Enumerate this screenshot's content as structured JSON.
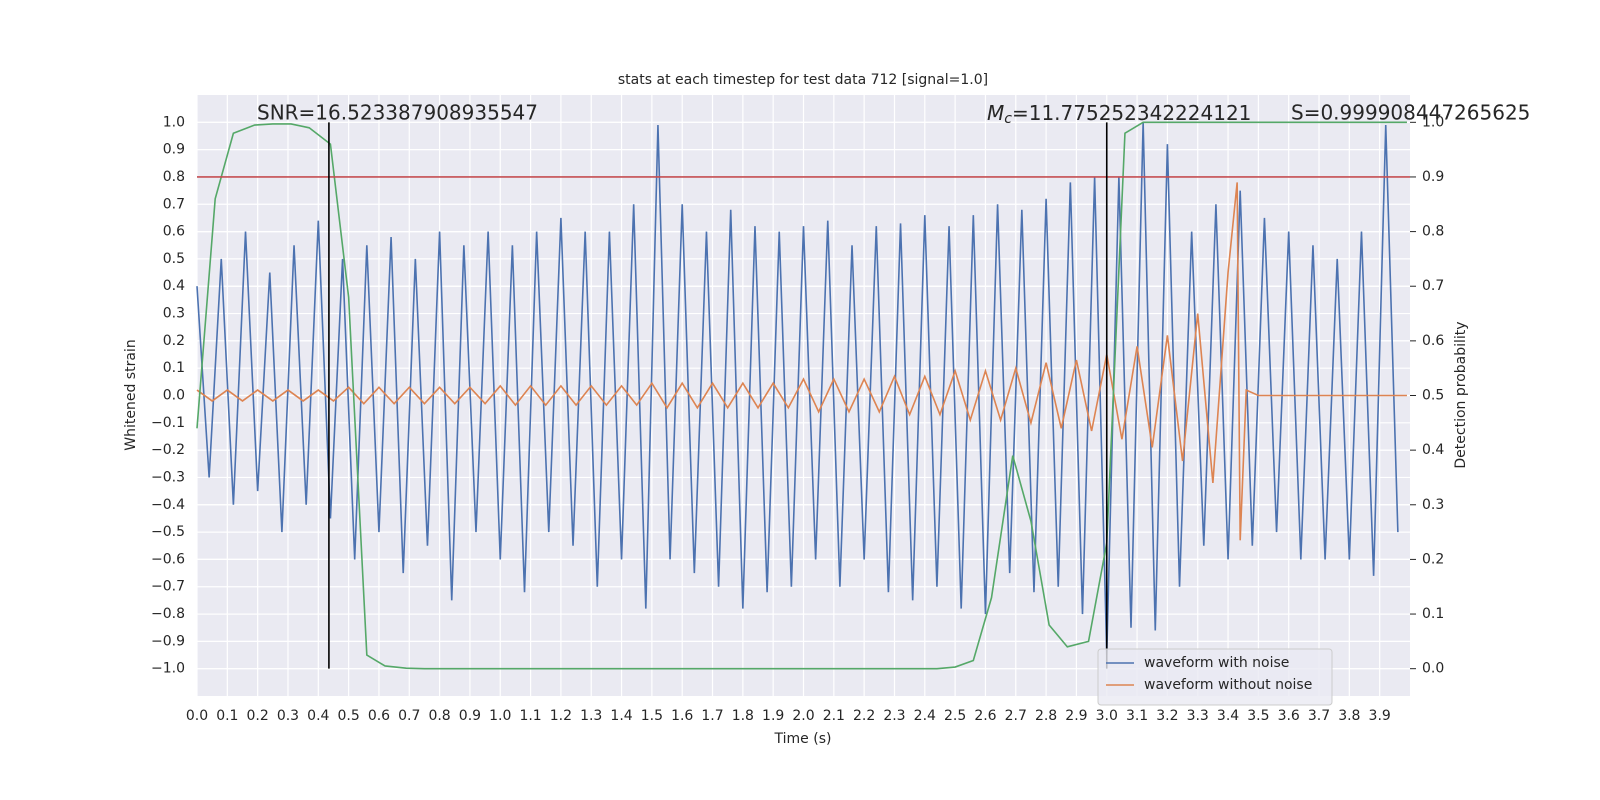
{
  "chart_data": {
    "type": "line",
    "title": "stats at each timestep for test data 712 [signal=1.0]",
    "xlabel": "Time (s)",
    "ylabel": "Whitened strain",
    "y2label": "Detection probability",
    "xlim": [
      0,
      4
    ],
    "ylim": [
      -1.1,
      1.1
    ],
    "y2lim": [
      -0.05,
      1.05
    ],
    "grid": true,
    "legend": "lower right",
    "xticks": [
      {
        "value": 0,
        "label": "0.0"
      },
      0.1,
      0.2,
      0.3,
      0.4,
      0.5,
      0.6,
      0.7,
      0.8,
      0.9,
      {
        "value": 1,
        "label": "1.0"
      },
      1.1,
      1.2,
      1.3,
      1.4,
      1.5,
      1.6,
      1.7,
      1.8,
      1.9,
      {
        "value": 2,
        "label": "2.0"
      },
      2.1,
      2.2,
      2.3,
      2.4,
      2.5,
      2.6,
      2.7,
      2.8,
      2.9,
      {
        "value": 3,
        "label": "3.0"
      },
      3.1,
      3.2,
      3.3,
      3.4,
      3.5,
      3.6,
      3.7,
      3.8,
      3.9
    ],
    "yticks": [
      {
        "value": -1,
        "label": "−1.0"
      },
      {
        "value": -0.9,
        "label": "−0.9"
      },
      {
        "value": -0.8,
        "label": "−0.8"
      },
      {
        "value": -0.7,
        "label": "−0.7"
      },
      {
        "value": -0.6,
        "label": "−0.6"
      },
      {
        "value": -0.5,
        "label": "−0.5"
      },
      {
        "value": -0.4,
        "label": "−0.4"
      },
      {
        "value": -0.3,
        "label": "−0.3"
      },
      {
        "value": -0.2,
        "label": "−0.2"
      },
      {
        "value": -0.1,
        "label": "−0.1"
      },
      {
        "value": 0,
        "label": "0.0"
      },
      0.1,
      0.2,
      0.3,
      0.4,
      0.5,
      0.6,
      0.7,
      0.8,
      0.9,
      {
        "value": 1,
        "label": "1.0"
      }
    ],
    "y2ticks": [
      {
        "value": 0,
        "label": "0.0"
      },
      0.1,
      0.2,
      0.3,
      0.4,
      0.5,
      0.6,
      0.7,
      0.8,
      0.9,
      {
        "value": 1,
        "label": "1.0"
      }
    ],
    "threshold": {
      "value": 0.8,
      "color": "#c44e52"
    },
    "vlines": {
      "x": [
        0.435,
        3.0
      ],
      "range": [
        -1,
        1
      ],
      "color": "#000000"
    },
    "annotations": {
      "snr": "SNR=16.523387908935547",
      "mc": {
        "symbol": "M",
        "subscript": "c",
        "text": "=11.775252342224121"
      },
      "s": "S=0.999908447265625"
    },
    "series": [
      {
        "name": "waveform with noise",
        "color": "#4c72b0",
        "axis": "y",
        "x": [
          0,
          0.04,
          0.08,
          0.12,
          0.16,
          0.2,
          0.24,
          0.28,
          0.32,
          0.36,
          0.4,
          0.44,
          0.48,
          0.52,
          0.56,
          0.6,
          0.64,
          0.68,
          0.72,
          0.76,
          0.8,
          0.84,
          0.88,
          0.92,
          0.96,
          1,
          1.04,
          1.08,
          1.12,
          1.16,
          1.2,
          1.24,
          1.28,
          1.32,
          1.36,
          1.4,
          1.44,
          1.48,
          1.52,
          1.56,
          1.6,
          1.64,
          1.68,
          1.72,
          1.76,
          1.8,
          1.84,
          1.88,
          1.92,
          1.96,
          2,
          2.04,
          2.08,
          2.12,
          2.16,
          2.2,
          2.24,
          2.28,
          2.32,
          2.36,
          2.4,
          2.44,
          2.48,
          2.52,
          2.56,
          2.6,
          2.64,
          2.68,
          2.72,
          2.76,
          2.8,
          2.84,
          2.88,
          2.92,
          2.96,
          3,
          3.04,
          3.08,
          3.12,
          3.16,
          3.2,
          3.24,
          3.28,
          3.32,
          3.36,
          3.4,
          3.44,
          3.48,
          3.52,
          3.56,
          3.6,
          3.64,
          3.68,
          3.72,
          3.76,
          3.8,
          3.84,
          3.88,
          3.92,
          3.96
        ],
        "values": [
          0.4,
          -0.3,
          0.5,
          -0.4,
          0.6,
          -0.35,
          0.45,
          -0.5,
          0.55,
          -0.4,
          0.64,
          -0.45,
          0.5,
          -0.6,
          0.55,
          -0.5,
          0.58,
          -0.65,
          0.5,
          -0.55,
          0.6,
          -0.75,
          0.55,
          -0.5,
          0.6,
          -0.6,
          0.55,
          -0.72,
          0.6,
          -0.5,
          0.65,
          -0.55,
          0.6,
          -0.7,
          0.6,
          -0.6,
          0.7,
          -0.78,
          0.99,
          -0.6,
          0.7,
          -0.65,
          0.6,
          -0.7,
          0.68,
          -0.78,
          0.62,
          -0.72,
          0.6,
          -0.7,
          0.62,
          -0.6,
          0.64,
          -0.7,
          0.55,
          -0.6,
          0.62,
          -0.72,
          0.63,
          -0.75,
          0.66,
          -0.7,
          0.62,
          -0.78,
          0.66,
          -0.8,
          0.7,
          -0.65,
          0.68,
          -0.72,
          0.72,
          -0.7,
          0.78,
          -0.8,
          0.8,
          -0.95,
          0.8,
          -0.85,
          1.0,
          -0.86,
          0.92,
          -0.7,
          0.6,
          -0.55,
          0.7,
          -0.6,
          0.75,
          -0.55,
          0.65,
          -0.5,
          0.6,
          -0.6,
          0.55,
          -0.6,
          0.5,
          -0.6,
          0.6,
          -0.66,
          0.99,
          -0.5
        ]
      },
      {
        "name": "waveform without noise",
        "color": "#dd8452",
        "axis": "y",
        "x": [
          0,
          0.05,
          0.1,
          0.15,
          0.2,
          0.25,
          0.3,
          0.35,
          0.4,
          0.45,
          0.5,
          0.55,
          0.6,
          0.65,
          0.7,
          0.75,
          0.8,
          0.85,
          0.9,
          0.95,
          1,
          1.05,
          1.1,
          1.15,
          1.2,
          1.25,
          1.3,
          1.35,
          1.4,
          1.45,
          1.5,
          1.55,
          1.6,
          1.65,
          1.7,
          1.75,
          1.8,
          1.85,
          1.9,
          1.95,
          2,
          2.05,
          2.1,
          2.15,
          2.2,
          2.25,
          2.3,
          2.35,
          2.4,
          2.45,
          2.5,
          2.55,
          2.6,
          2.65,
          2.7,
          2.75,
          2.8,
          2.85,
          2.9,
          2.95,
          3,
          3.05,
          3.1,
          3.15,
          3.2,
          3.25,
          3.3,
          3.35,
          3.4,
          3.43,
          3.44,
          3.46,
          3.5,
          3.99
        ],
        "values": [
          0.02,
          -0.02,
          0.02,
          -0.02,
          0.02,
          -0.02,
          0.02,
          -0.02,
          0.02,
          -0.02,
          0.03,
          -0.03,
          0.03,
          -0.03,
          0.03,
          -0.03,
          0.03,
          -0.03,
          0.03,
          -0.03,
          0.035,
          -0.035,
          0.035,
          -0.035,
          0.035,
          -0.035,
          0.035,
          -0.035,
          0.035,
          -0.035,
          0.045,
          -0.045,
          0.045,
          -0.045,
          0.045,
          -0.045,
          0.045,
          -0.045,
          0.045,
          -0.045,
          0.06,
          -0.06,
          0.06,
          -0.06,
          0.06,
          -0.06,
          0.07,
          -0.07,
          0.07,
          -0.07,
          0.09,
          -0.09,
          0.09,
          -0.09,
          0.1,
          -0.1,
          0.12,
          -0.12,
          0.13,
          -0.13,
          0.15,
          -0.16,
          0.18,
          -0.19,
          0.22,
          -0.24,
          0.3,
          -0.32,
          0.45,
          0.78,
          -0.53,
          0.02,
          0,
          0
        ]
      },
      {
        "color": "#55a868",
        "axis": "y2",
        "x": [
          0,
          0.06,
          0.12,
          0.19,
          0.25,
          0.31,
          0.37,
          0.44,
          0.5,
          0.56,
          0.62,
          0.69,
          0.75,
          2.44,
          2.5,
          2.56,
          2.62,
          2.69,
          2.75,
          2.81,
          2.87,
          2.94,
          3.0,
          3.06,
          3.12,
          3.99
        ],
        "values": [
          0.44,
          0.86,
          0.98,
          0.995,
          0.997,
          0.997,
          0.99,
          0.96,
          0.68,
          0.025,
          0.005,
          0.001,
          0,
          0,
          0.003,
          0.015,
          0.13,
          0.39,
          0.27,
          0.08,
          0.04,
          0.05,
          0.23,
          0.98,
          1.0,
          1.0
        ]
      }
    ]
  }
}
